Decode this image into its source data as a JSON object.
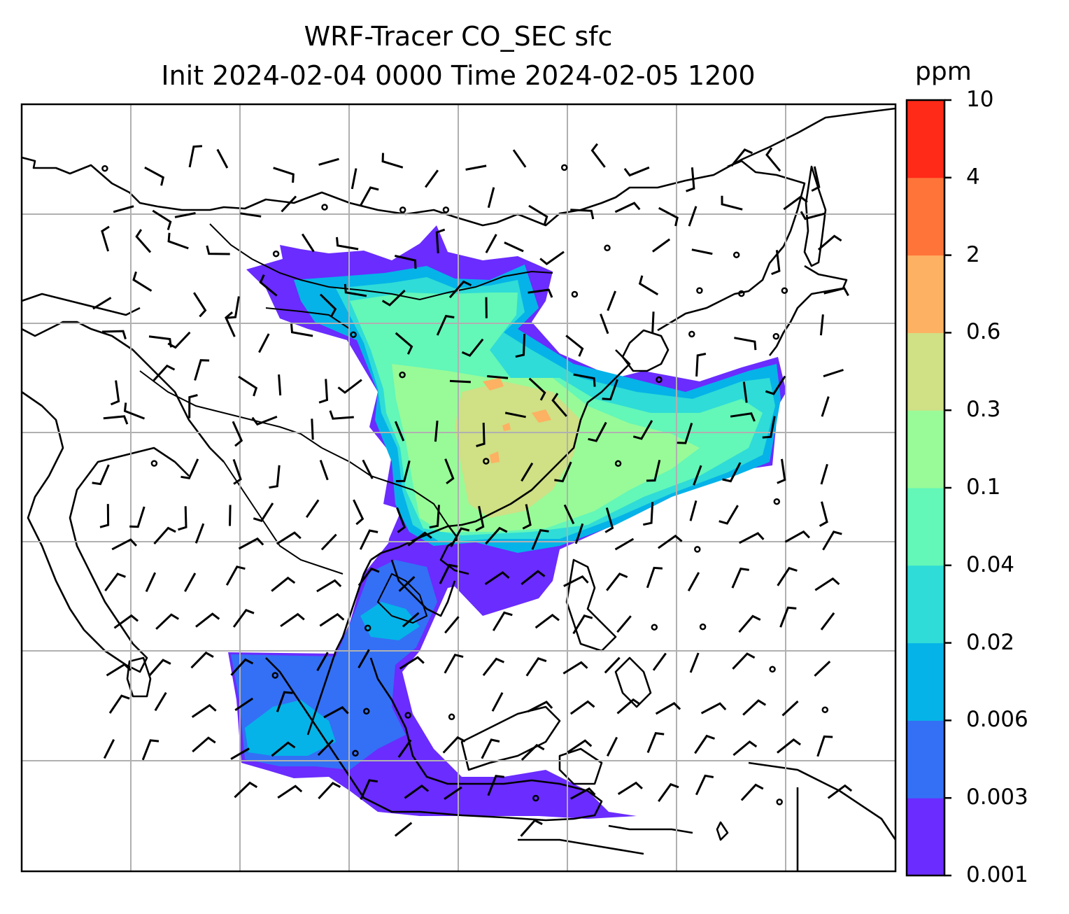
{
  "title": {
    "line1": "WRF-Tracer CO_SEC sfc",
    "line2": "Init 2024-02-04 0000 Time 2024-02-05 1200"
  },
  "colorbar": {
    "unit": "ppm",
    "levels": [
      "0.001",
      "0.003",
      "0.006",
      "0.02",
      "0.04",
      "0.1",
      "0.3",
      "0.6",
      "2",
      "4",
      "10"
    ],
    "colors": [
      "#6a2cff",
      "#3370f5",
      "#05b3e8",
      "#2fdcd7",
      "#63f7b8",
      "#98fb98",
      "#cfe085",
      "#fdb162",
      "#ff7439",
      "#ff2a18"
    ]
  },
  "map": {
    "gridlines": true,
    "frame_color": "#000000",
    "grid_color": "#b0b0b0"
  }
}
